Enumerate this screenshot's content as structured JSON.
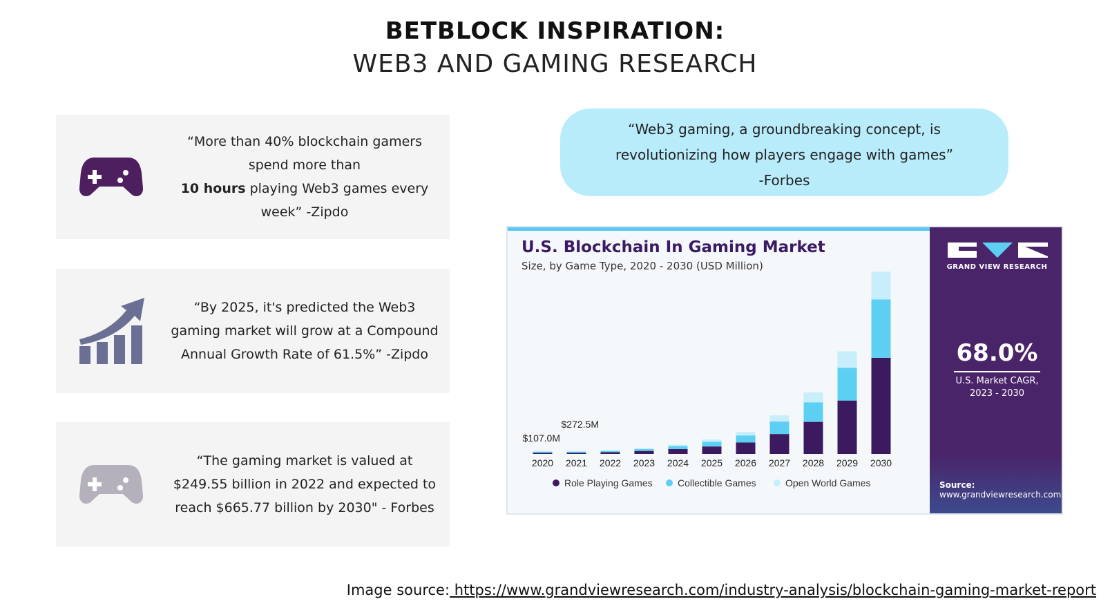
{
  "title": {
    "line1": "BETBLOCK INSPIRATION",
    "colon": ":",
    "line2": "WEB3 AND GAMING RESEARCH"
  },
  "cards": [
    {
      "icon": "gamepad-icon",
      "color": "#4d1f5f",
      "pre": "“More than 40% blockchain gamers spend more than",
      "bold": "10 hours",
      "post": "playing Web3 games every week” -Zipdo"
    },
    {
      "icon": "growth-chart-icon",
      "color": "#6b6f94",
      "text": "“By 2025, it's predicted the Web3 gaming market will grow at a Compound Annual Growth Rate of 61.5%” -Zipdo"
    },
    {
      "icon": "gamepad-icon",
      "color": "#b4b1bd",
      "text": "“The gaming market is valued at $249.55 billion in 2022 and expected to reach $665.77 billion by 2030\" - Forbes"
    }
  ],
  "quote": {
    "line1": "“Web3 gaming, a groundbreaking concept, is",
    "line2": "revolutionizing how players engage with games”",
    "line3": "-Forbes"
  },
  "chart_panel": {
    "brand": "GRAND VIEW RESEARCH",
    "cagr": "68.0%",
    "cagr_label_1": "U.S. Market CAGR,",
    "cagr_label_2": "2023 - 2030",
    "source_label": "Source:",
    "source_url": "www.grandviewresearch.com"
  },
  "chart_data": {
    "type": "bar",
    "stacked": true,
    "title": "U.S. Blockchain In Gaming Market",
    "subtitle": "Size, by Game Type, 2020 - 2030 (USD Million)",
    "categories": [
      "2020",
      "2021",
      "2022",
      "2023",
      "2024",
      "2025",
      "2026",
      "2027",
      "2028",
      "2029",
      "2030"
    ],
    "series": [
      {
        "name": "Role Playing Games",
        "color": "#3c1a5f",
        "values": [
          55,
          140,
          250,
          420,
          680,
          1050,
          1600,
          2800,
          4500,
          7500,
          13500
        ]
      },
      {
        "name": "Collectible Games",
        "color": "#5dcff3",
        "values": [
          35,
          90,
          160,
          260,
          420,
          650,
          1000,
          1750,
          2750,
          4600,
          8200
        ]
      },
      {
        "name": "Open World Games",
        "color": "#c8edfb",
        "values": [
          17,
          42,
          70,
          120,
          200,
          320,
          500,
          860,
          1400,
          2300,
          3900
        ]
      }
    ],
    "annotations": [
      {
        "category": "2020",
        "text": "$107.0M"
      },
      {
        "category": "2021",
        "text": "$272.5M"
      }
    ],
    "ylim": [
      0,
      26000
    ],
    "legend": "bottom",
    "grid": false
  },
  "image_source": {
    "label": "Image source:",
    "url": " https://www.grandviewresearch.com/industry-analysis/blockchain-gaming-market-report"
  }
}
